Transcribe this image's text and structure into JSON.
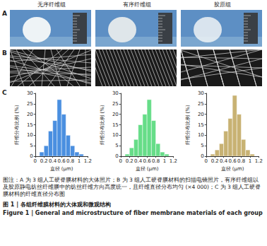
{
  "columns": [
    "无序纤维组",
    "有序纤维组",
    "胶原组"
  ],
  "panels": [
    {
      "letter": "A"
    },
    {
      "letter": "B"
    },
    {
      "letter": "C"
    }
  ],
  "chart_data": [
    {
      "type": "histogram",
      "bins": [
        0.1,
        0.2,
        0.3,
        0.4,
        0.5,
        0.6,
        0.7,
        0.8,
        0.9,
        1.0,
        1.1
      ],
      "values": [
        2,
        5,
        12,
        17,
        27,
        20,
        10,
        5,
        2,
        1
      ],
      "color": "#4a8fe0",
      "x_label": "直径 (μm)",
      "y_label": "纤维分布比例 (%)",
      "xlim": [
        0,
        1.2
      ],
      "xticks": [
        0,
        0.2,
        0.4,
        0.6,
        0.8,
        1,
        1.2
      ],
      "ylim": [
        0,
        30
      ],
      "yticks": [
        0,
        5,
        10,
        15,
        20,
        25,
        30
      ],
      "grid": false
    },
    {
      "type": "histogram",
      "bins": [
        0.1,
        0.2,
        0.3,
        0.4,
        0.5,
        0.6,
        0.7,
        0.8,
        0.9,
        1.0,
        1.1
      ],
      "values": [
        1,
        4,
        8,
        15,
        20,
        27,
        17,
        6,
        2,
        1
      ],
      "color": "#66dd88",
      "x_label": "直径 (μm)",
      "y_label": "纤维分布比例 (%)",
      "xlim": [
        0,
        1.2
      ],
      "xticks": [
        0,
        0.2,
        0.4,
        0.6,
        0.8,
        1,
        1.2
      ],
      "ylim": [
        0,
        30
      ],
      "yticks": [
        0,
        5,
        10,
        15,
        20,
        25,
        30
      ],
      "grid": false
    },
    {
      "type": "histogram",
      "bins": [
        0.1,
        0.2,
        0.3,
        0.4,
        0.5,
        0.6,
        0.7,
        0.8,
        0.9,
        1.0,
        1.1
      ],
      "values": [
        1,
        3,
        6,
        12,
        18,
        29,
        20,
        8,
        3,
        1
      ],
      "color": "#c8b273",
      "x_label": "直径 (μm)",
      "y_label": "纤维分布比例 (%)",
      "xlim": [
        0,
        1.2
      ],
      "xticks": [
        0,
        0.2,
        0.4,
        0.6,
        0.8,
        1,
        1.2
      ],
      "ylim": [
        0,
        30
      ],
      "yticks": [
        0,
        5,
        10,
        15,
        20,
        25,
        30
      ],
      "grid": false
    }
  ],
  "caption": {
    "note": "图注：A 为 3 组人工硬脊膜材料的大体照片；B 为 3 组人工硬脊膜材料的扫描电镜照片，有序纤维组以及胶原静电纺丝纤维膜中的纺丝纤维方向高度统一，且纤维直径分布均匀 (×4 000)；C 为 3 组人工硬脊膜材料的纤维直径分布图",
    "title_cn": "图 1 | 各组纤维膜材料的大体观和微观结构",
    "title_en": "Figure 1 | General and microstructure of fiber membrane materials of each group"
  }
}
